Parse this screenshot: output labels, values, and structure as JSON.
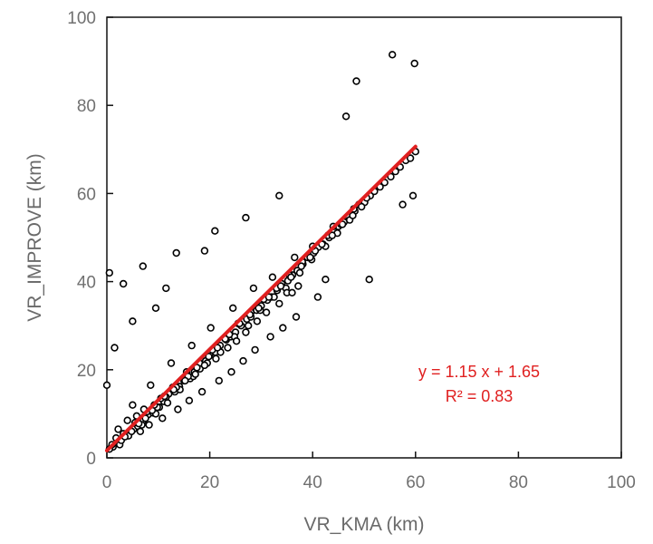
{
  "chart_data": {
    "type": "scatter",
    "title": "",
    "xlabel": "VR_KMA (km)",
    "ylabel": "VR_IMPROVE (km)",
    "xlim": [
      0,
      100
    ],
    "ylim": [
      0,
      100
    ],
    "xticks": [
      0,
      20,
      40,
      60,
      80,
      100
    ],
    "yticks": [
      0,
      20,
      40,
      60,
      80,
      100
    ],
    "grid": false,
    "marker": "open-circle",
    "marker_color": "#000000",
    "fit": {
      "slope": 1.15,
      "intercept": 1.65,
      "x_range": [
        0,
        60
      ],
      "color": "#e02020",
      "equation_label": "y = 1.15 x + 1.65",
      "r2_label": "R² = 0.83"
    },
    "series": [
      {
        "x": [
          1.2,
          2.1,
          3.0,
          3.8,
          4.5,
          5.2,
          6.0,
          7.1,
          8.0,
          9.0,
          10.2,
          11.1,
          12.0,
          13.2,
          14.1,
          15.0,
          16.2,
          17.0,
          18.1,
          19.2,
          20.0,
          21.1,
          22.0,
          23.2,
          24.1,
          25.0,
          26.1,
          27.2,
          28.0,
          29.1,
          30.0,
          31.2,
          32.0,
          33.1,
          34.0,
          35.2,
          36.1,
          37.0,
          38.1,
          39.0,
          40.2,
          41.1,
          42.0,
          43.2,
          44.1,
          45.0,
          46.1,
          47.0,
          48.2,
          49.0,
          50.1,
          51.2,
          52.0,
          53.1,
          54.0,
          55.2,
          56.1,
          57.0,
          58.1,
          59.0,
          60.0,
          3.2,
          5.5,
          7.8,
          10.5,
          12.8,
          15.5,
          18.0,
          20.5,
          23.0,
          25.5,
          28.0,
          30.5,
          33.0,
          35.5,
          38.0,
          40.5,
          43.0,
          45.5,
          48.0,
          50.5,
          2.5,
          4.2,
          6.8,
          9.5,
          11.8,
          14.2,
          16.8,
          19.5,
          22.1,
          24.8,
          27.5,
          29.8,
          32.5,
          34.8,
          37.5,
          39.8,
          42.5,
          44.8,
          47.2,
          49.5,
          0.5,
          1.0,
          2.8,
          3.5,
          4.8,
          6.2,
          7.5,
          8.8,
          9.8,
          11.5,
          13.5,
          15.8,
          17.5,
          19.8,
          21.5,
          23.8,
          25.8,
          27.8,
          29.5,
          31.5,
          33.8,
          35.8,
          37.8,
          39.5,
          41.8,
          43.8,
          45.8,
          47.8,
          5.0,
          8.5,
          12.5,
          16.5,
          20.2,
          24.5,
          28.5,
          32.2,
          36.5,
          40.0,
          44.0,
          1.8,
          2.2,
          4.0,
          5.8,
          7.2,
          9.2,
          11.2,
          13.0,
          15.2,
          17.2,
          19.0,
          21.2,
          23.5,
          25.2,
          27.0,
          29.2,
          31.0,
          33.5,
          35.0,
          37.2,
          6.5,
          8.2,
          10.8,
          13.8,
          16.0,
          18.5,
          21.8,
          24.2,
          26.5,
          28.8,
          31.8,
          34.2,
          36.8,
          0.0,
          0.5,
          1.5,
          3.2,
          5.0,
          7.0,
          9.5,
          11.5,
          13.5,
          19.0,
          21.0,
          27.0,
          33.5,
          36.0,
          41.0,
          42.5,
          46.5,
          48.5,
          51.0,
          55.5,
          57.5,
          59.5,
          59.8
        ],
        "y": [
          2.5,
          3.8,
          4.5,
          5.0,
          5.8,
          6.5,
          7.2,
          8.5,
          9.8,
          10.2,
          11.5,
          12.8,
          14.5,
          15.0,
          16.2,
          17.5,
          18.0,
          19.5,
          20.2,
          22.0,
          23.5,
          24.0,
          25.5,
          26.8,
          27.5,
          28.5,
          30.0,
          31.5,
          32.0,
          33.5,
          34.5,
          35.8,
          36.5,
          38.0,
          39.5,
          40.2,
          41.5,
          42.5,
          44.0,
          45.5,
          46.5,
          47.8,
          48.5,
          50.0,
          51.5,
          52.5,
          53.5,
          54.8,
          56.0,
          57.5,
          58.0,
          59.5,
          60.5,
          61.5,
          62.5,
          63.8,
          65.0,
          66.0,
          67.5,
          68.0,
          69.5,
          5.5,
          8.0,
          10.5,
          13.5,
          16.0,
          19.5,
          21.5,
          24.5,
          27.0,
          30.5,
          33.0,
          36.0,
          38.5,
          41.5,
          44.5,
          47.0,
          50.5,
          53.0,
          56.5,
          59.0,
          3.0,
          5.0,
          7.5,
          10.0,
          12.5,
          15.5,
          18.5,
          21.5,
          24.0,
          27.5,
          30.0,
          33.5,
          36.5,
          38.5,
          42.0,
          45.0,
          48.0,
          51.0,
          54.0,
          57.0,
          2.0,
          3.0,
          4.0,
          4.8,
          6.0,
          7.8,
          9.0,
          10.8,
          11.5,
          13.8,
          16.0,
          18.5,
          20.5,
          23.0,
          25.0,
          28.0,
          30.5,
          32.5,
          34.0,
          36.5,
          39.0,
          41.0,
          43.5,
          45.5,
          48.5,
          50.5,
          53.0,
          55.0,
          12.0,
          16.5,
          21.5,
          25.5,
          29.5,
          34.0,
          38.5,
          41.0,
          45.5,
          48.0,
          52.5,
          4.5,
          6.5,
          8.5,
          9.5,
          11.0,
          12.0,
          14.0,
          15.5,
          17.5,
          19.0,
          21.0,
          22.5,
          25.0,
          26.5,
          28.5,
          31.0,
          33.0,
          35.0,
          37.5,
          39.0,
          6.0,
          7.5,
          9.0,
          11.0,
          13.0,
          15.0,
          17.5,
          19.5,
          22.0,
          24.5,
          27.5,
          29.5,
          32.0,
          16.5,
          42.0,
          25.0,
          39.5,
          31.0,
          43.5,
          34.0,
          38.5,
          46.5,
          47.0,
          51.5,
          54.5,
          59.5,
          37.5,
          36.5,
          40.5,
          77.5,
          85.5,
          40.5,
          91.5,
          57.5,
          59.5,
          89.5
        ]
      }
    ]
  }
}
